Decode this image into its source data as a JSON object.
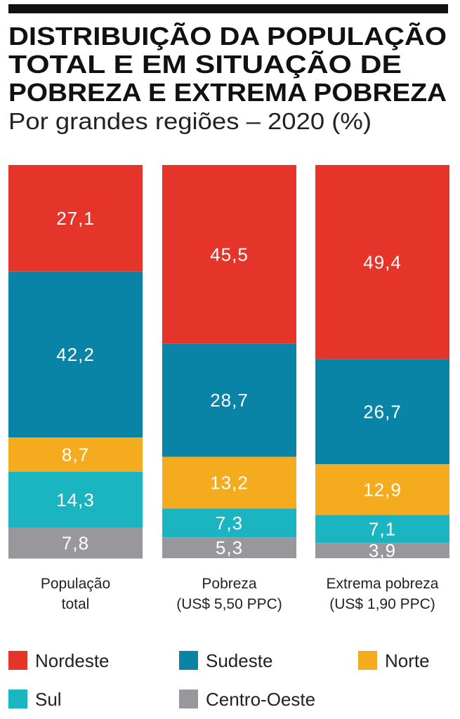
{
  "chart_data": {
    "type": "bar",
    "stacked": true,
    "title": [
      "DISTRIBUIÇÃO DA POPULAÇÃO",
      "TOTAL E EM SITUAÇÃO DE",
      "POBREZA E EXTREMA POBREZA"
    ],
    "subtitle": "Por grandes regiões – 2020 (%)",
    "categories": [
      [
        "População",
        "total"
      ],
      [
        "Pobreza",
        "(US$ 5,50 PPC)"
      ],
      [
        "Extrema pobreza",
        "(US$ 1,90 PPC)"
      ]
    ],
    "ylim": [
      0,
      100
    ],
    "series": [
      {
        "name": "Nordeste",
        "color": "#e5352b",
        "values": [
          27.1,
          45.5,
          49.4
        ],
        "labels": [
          "27,1",
          "45,5",
          "49,4"
        ]
      },
      {
        "name": "Sudeste",
        "color": "#0a84a6",
        "values": [
          42.2,
          28.7,
          26.7
        ],
        "labels": [
          "42,2",
          "28,7",
          "26,7"
        ]
      },
      {
        "name": "Norte",
        "color": "#f4ab1e",
        "values": [
          8.7,
          13.2,
          12.9
        ],
        "labels": [
          "8,7",
          "13,2",
          "12,9"
        ]
      },
      {
        "name": "Sul",
        "color": "#1bb5c2",
        "values": [
          14.3,
          7.3,
          7.1
        ],
        "labels": [
          "14,3",
          "7,3",
          "7,1"
        ]
      },
      {
        "name": "Centro-Oeste",
        "color": "#98989c",
        "values": [
          7.8,
          5.3,
          3.9
        ],
        "labels": [
          "7,8",
          "5,3",
          "3,9"
        ]
      }
    ],
    "legend_position": "bottom"
  }
}
